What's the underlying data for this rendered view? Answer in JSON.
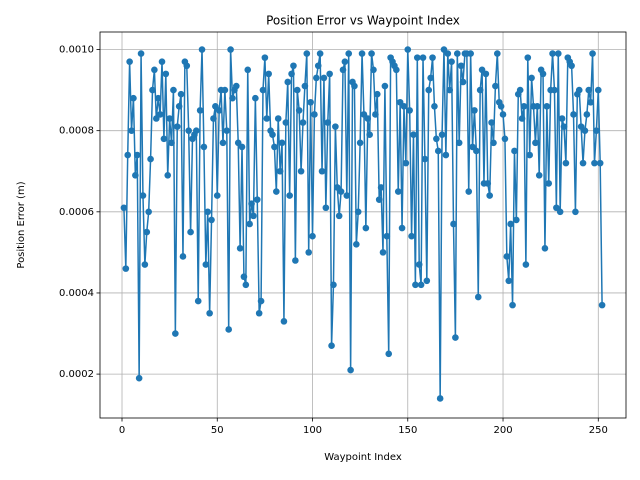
{
  "chart_data": {
    "type": "line",
    "title": "Position Error vs Waypoint Index",
    "x_label": "Waypoint Index",
    "y_label": "Position Error (m)",
    "x": [
      1,
      2,
      3,
      4,
      5,
      6,
      7,
      8,
      9,
      10,
      11,
      12,
      13,
      14,
      15,
      16,
      17,
      18,
      19,
      20,
      21,
      22,
      23,
      24,
      25,
      26,
      27,
      28,
      29,
      30,
      31,
      32,
      33,
      34,
      35,
      36,
      37,
      38,
      39,
      40,
      41,
      42,
      43,
      44,
      45,
      46,
      47,
      48,
      49,
      50,
      51,
      52,
      53,
      54,
      55,
      56,
      57,
      58,
      59,
      60,
      61,
      62,
      63,
      64,
      65,
      66,
      67,
      68,
      69,
      70,
      71,
      72,
      73,
      74,
      75,
      76,
      77,
      78,
      79,
      80,
      81,
      82,
      83,
      84,
      85,
      86,
      87,
      88,
      89,
      90,
      91,
      92,
      93,
      94,
      95,
      96,
      97,
      98,
      99,
      100,
      101,
      102,
      103,
      104,
      105,
      106,
      107,
      108,
      109,
      110,
      111,
      112,
      113,
      114,
      115,
      116,
      117,
      118,
      119,
      120,
      121,
      122,
      123,
      124,
      125,
      126,
      127,
      128,
      129,
      130,
      131,
      132,
      133,
      134,
      135,
      136,
      137,
      138,
      139,
      140,
      141,
      142,
      143,
      144,
      145,
      146,
      147,
      148,
      149,
      150,
      151,
      152,
      153,
      154,
      155,
      156,
      157,
      158,
      159,
      160,
      161,
      162,
      163,
      164,
      165,
      166,
      167,
      168,
      169,
      170,
      171,
      172,
      173,
      174,
      175,
      176,
      177,
      178,
      179,
      180,
      181,
      182,
      183,
      184,
      185,
      186,
      187,
      188,
      189,
      190,
      191,
      192,
      193,
      194,
      195,
      196,
      197,
      198,
      199,
      200,
      201,
      202,
      203,
      204,
      205,
      206,
      207,
      208,
      209,
      210,
      211,
      212,
      213,
      214,
      215,
      216,
      217,
      218,
      219,
      220,
      221,
      222,
      223,
      224,
      225,
      226,
      227,
      228,
      229,
      230,
      231,
      232,
      233,
      234,
      235,
      236,
      237,
      238,
      239,
      240,
      241,
      242,
      243,
      244,
      245,
      246,
      247,
      248,
      249,
      250,
      251,
      252
    ],
    "values": [
      0.00061,
      0.00046,
      0.00074,
      0.00097,
      0.0008,
      0.00088,
      0.00069,
      0.00074,
      0.00019,
      0.00099,
      0.00064,
      0.00047,
      0.00055,
      0.0006,
      0.00073,
      0.0009,
      0.00095,
      0.00083,
      0.00088,
      0.00084,
      0.00097,
      0.00078,
      0.00094,
      0.00069,
      0.00083,
      0.00077,
      0.0009,
      0.0003,
      0.00081,
      0.00086,
      0.00089,
      0.00049,
      0.00097,
      0.00096,
      0.0008,
      0.00055,
      0.00078,
      0.00079,
      0.0008,
      0.00038,
      0.00085,
      0.001,
      0.00076,
      0.00047,
      0.0006,
      0.00035,
      0.00058,
      0.00083,
      0.00086,
      0.00064,
      0.00085,
      0.0009,
      0.00077,
      0.0009,
      0.0008,
      0.00031,
      0.001,
      0.00088,
      0.0009,
      0.00091,
      0.00077,
      0.00051,
      0.00076,
      0.00044,
      0.00042,
      0.00095,
      0.00057,
      0.00062,
      0.00059,
      0.00088,
      0.00063,
      0.00035,
      0.00038,
      0.0009,
      0.00098,
      0.00083,
      0.00094,
      0.0008,
      0.00079,
      0.00076,
      0.00065,
      0.00083,
      0.0007,
      0.00077,
      0.00033,
      0.00082,
      0.00092,
      0.00064,
      0.00094,
      0.00096,
      0.00048,
      0.0009,
      0.00085,
      0.0007,
      0.00082,
      0.00091,
      0.00099,
      0.0005,
      0.00087,
      0.00054,
      0.00084,
      0.00093,
      0.00096,
      0.00099,
      0.0007,
      0.00093,
      0.00061,
      0.00082,
      0.00094,
      0.00027,
      0.00042,
      0.00081,
      0.00066,
      0.00059,
      0.00065,
      0.00095,
      0.00097,
      0.00064,
      0.00099,
      0.00021,
      0.00092,
      0.00091,
      0.00052,
      0.0006,
      0.00077,
      0.00099,
      0.00084,
      0.00056,
      0.00083,
      0.00079,
      0.00099,
      0.00095,
      0.00084,
      0.00089,
      0.00063,
      0.00066,
      0.0005,
      0.00091,
      0.00054,
      0.00025,
      0.00098,
      0.00097,
      0.00096,
      0.00095,
      0.00065,
      0.00087,
      0.00056,
      0.00086,
      0.00072,
      0.001,
      0.00085,
      0.00054,
      0.00079,
      0.00042,
      0.00098,
      0.00047,
      0.00042,
      0.00098,
      0.00073,
      0.00043,
      0.0009,
      0.00093,
      0.00098,
      0.00086,
      0.00078,
      0.00075,
      0.00014,
      0.00079,
      0.001,
      0.00074,
      0.00099,
      0.0009,
      0.00097,
      0.00057,
      0.00029,
      0.00099,
      0.00077,
      0.00096,
      0.00092,
      0.00099,
      0.00099,
      0.00065,
      0.00099,
      0.00076,
      0.00085,
      0.00075,
      0.00039,
      0.0009,
      0.00095,
      0.00067,
      0.00094,
      0.00067,
      0.00064,
      0.00082,
      0.00077,
      0.00091,
      0.00099,
      0.00087,
      0.00086,
      0.00084,
      0.00078,
      0.00049,
      0.00043,
      0.00057,
      0.00037,
      0.00075,
      0.00058,
      0.00089,
      0.0009,
      0.00083,
      0.00086,
      0.00047,
      0.00098,
      0.00074,
      0.00093,
      0.00086,
      0.00077,
      0.00086,
      0.00069,
      0.00095,
      0.00094,
      0.00051,
      0.00086,
      0.00067,
      0.0009,
      0.00099,
      0.0009,
      0.00061,
      0.00099,
      0.0006,
      0.00083,
      0.00081,
      0.00072,
      0.00098,
      0.00097,
      0.00096,
      0.00084,
      0.0006,
      0.00089,
      0.0009,
      0.00081,
      0.00072,
      0.0008,
      0.00084,
      0.0009,
      0.00087,
      0.00099,
      0.00072,
      0.0008,
      0.0009,
      0.00072,
      0.00037
    ],
    "color": "#1f77b4",
    "xlim": [
      -11.55,
      264.55
    ],
    "xticks": [
      0,
      50,
      100,
      150,
      200,
      250
    ],
    "ylim": [
      9.18e-05,
      0.0010432
    ],
    "yticks": [
      0.0002,
      0.0004,
      0.0006,
      0.0008,
      {
        "value": 0.001,
        "label": "0.0010"
      }
    ],
    "grid": true
  }
}
